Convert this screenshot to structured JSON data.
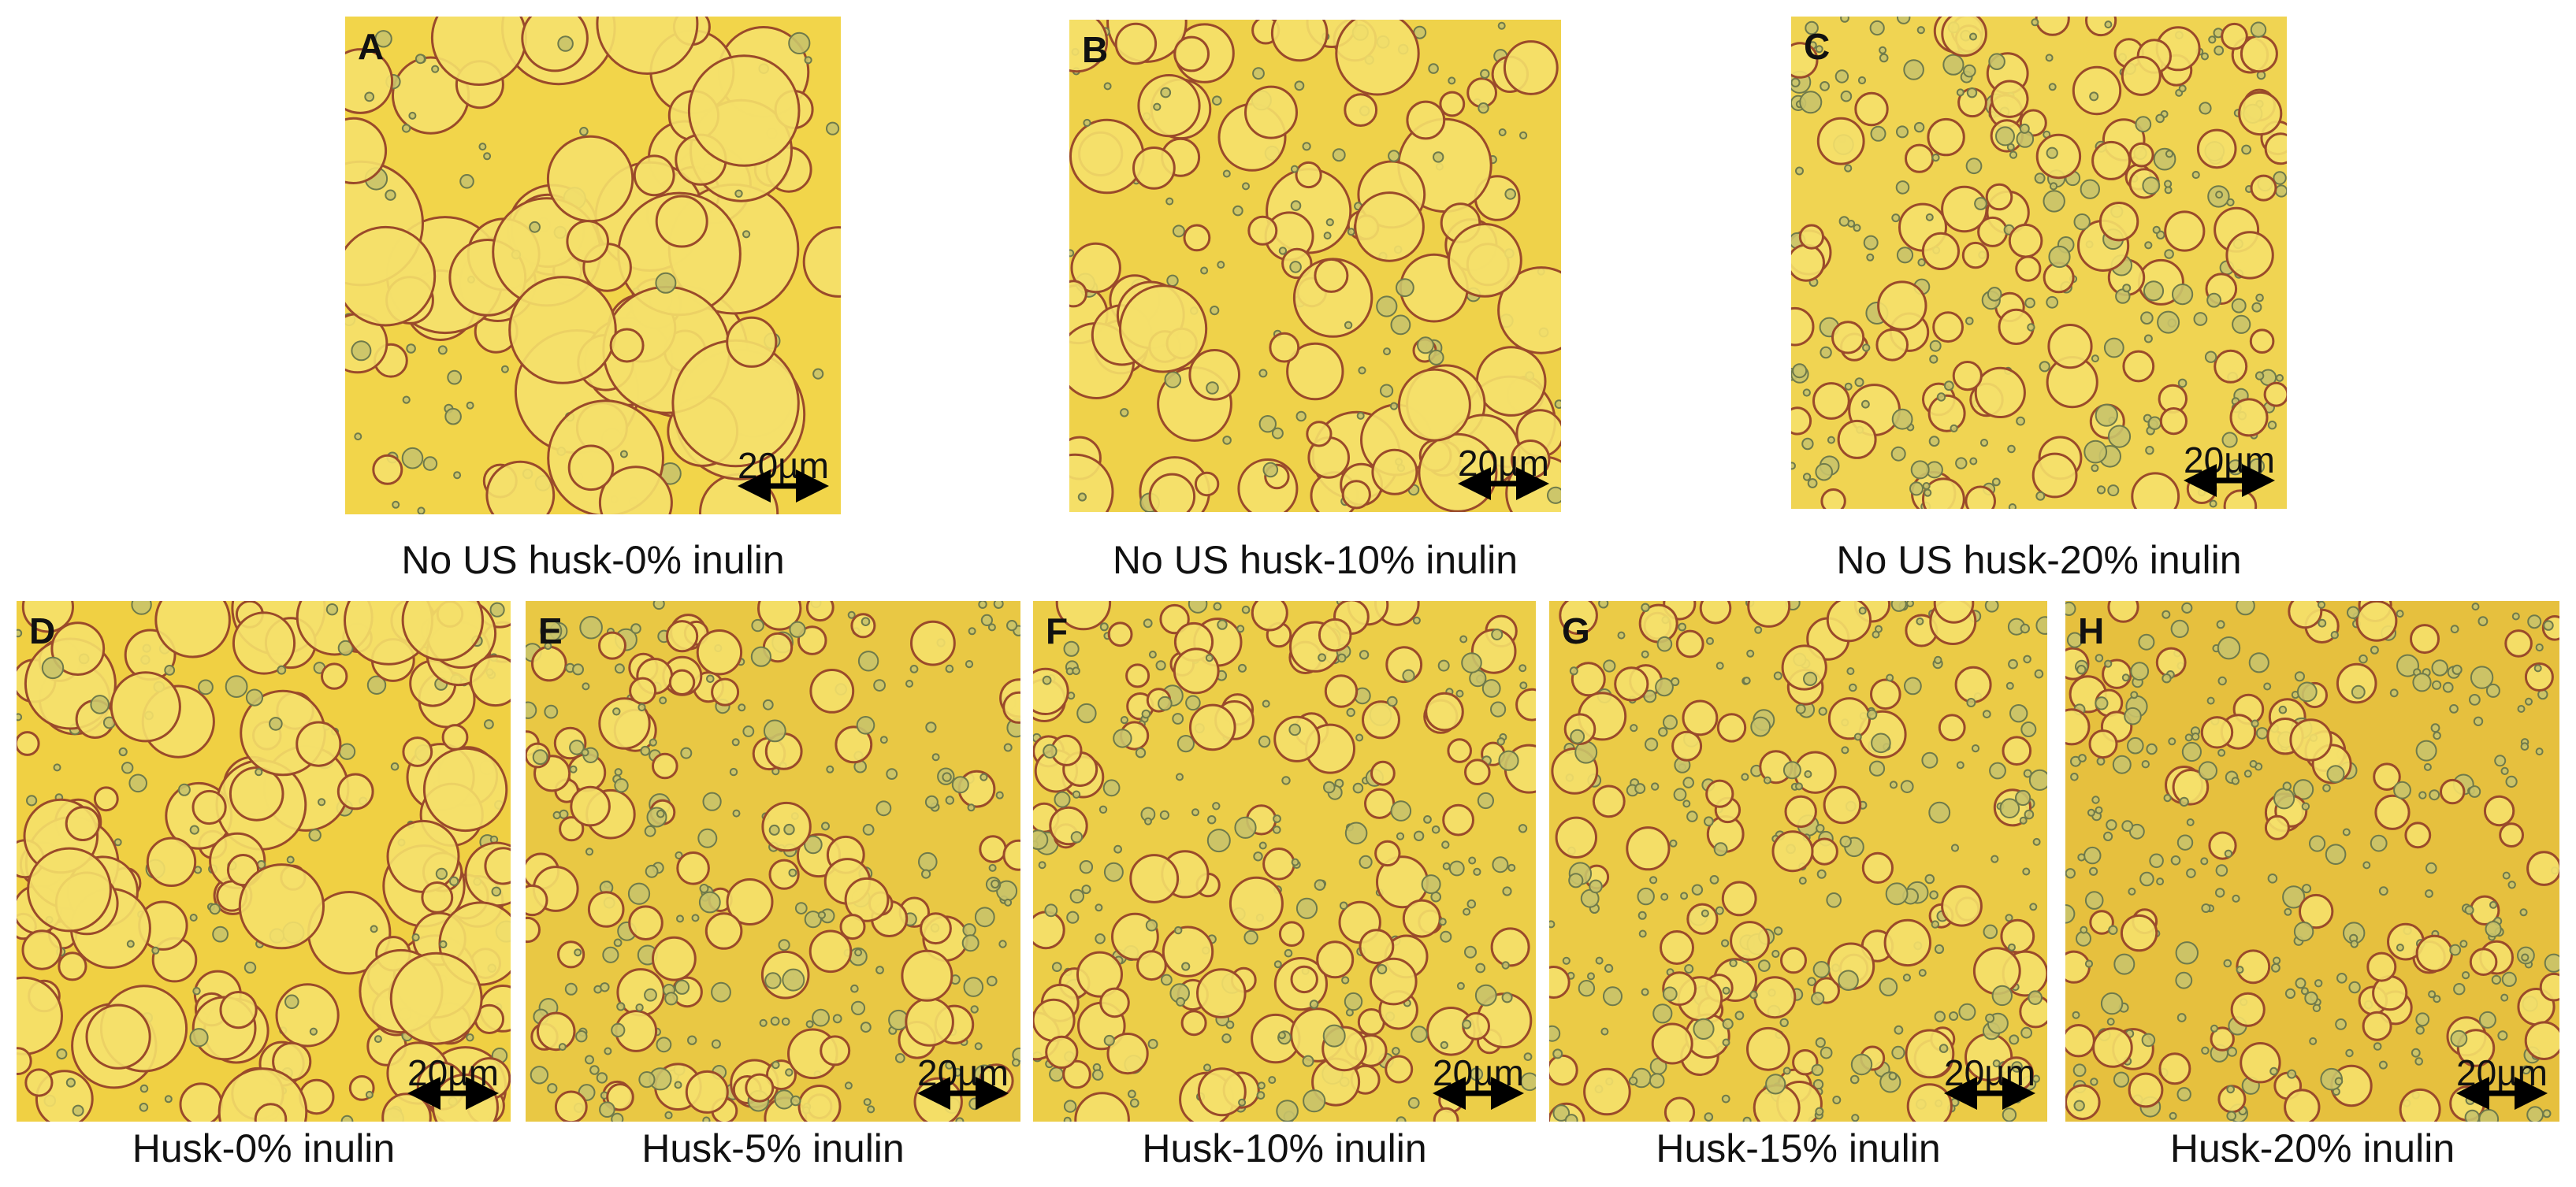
{
  "panels": [
    {
      "letter": "A",
      "caption": "No US husk-0% inulin",
      "scale_bar": "20µm"
    },
    {
      "letter": "B",
      "caption": "No US husk-10% inulin",
      "scale_bar": "20µm"
    },
    {
      "letter": "C",
      "caption": "No US husk-20% inulin",
      "scale_bar": "20µm"
    },
    {
      "letter": "D",
      "caption": "Husk-0% inulin",
      "scale_bar": "20µm"
    },
    {
      "letter": "E",
      "caption": "Husk-5% inulin",
      "scale_bar": "20µm"
    },
    {
      "letter": "F",
      "caption": "Husk-10% inulin",
      "scale_bar": "20µm"
    },
    {
      "letter": "G",
      "caption": "Husk-15% inulin",
      "scale_bar": "20µm"
    },
    {
      "letter": "H",
      "caption": "Husk-20% inulin",
      "scale_bar": "20µm"
    }
  ]
}
